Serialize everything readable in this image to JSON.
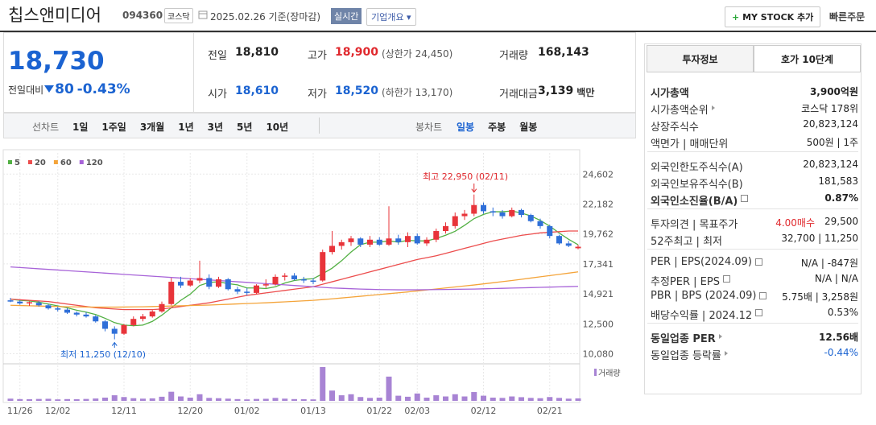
{
  "header": {
    "name": "칩스앤미디어",
    "code": "094360",
    "market": "코스닥",
    "date": "2025.02.26 기준(장마감)",
    "realtime": "실시간",
    "company": "기업개요",
    "my_stock": "MY STOCK 추가",
    "quick_order": "빠른주문"
  },
  "price": {
    "current": "18,730",
    "change_label": "전일대비",
    "change": "80",
    "change_rate": "-0.43%"
  },
  "summary": [
    {
      "label": "전일",
      "value": "18,810",
      "color": "#222"
    },
    {
      "label": "고가",
      "value": "18,900",
      "color": "#e0282d",
      "extra": "(상한가 24,450)"
    },
    {
      "label": "거래량",
      "value": "168,143",
      "color": "#222"
    },
    {
      "label": "시가",
      "value": "18,610",
      "color": "#1b63d1"
    },
    {
      "label": "저가",
      "value": "18,520",
      "color": "#1b63d1",
      "extra": "(하한가 13,170)"
    },
    {
      "label": "거래대금",
      "value": "3,139",
      "color": "#222",
      "unit": "백만"
    }
  ],
  "toolbar": {
    "line_label": "선차트",
    "line_periods": [
      "1일",
      "1주일",
      "3개월",
      "1년",
      "3년",
      "5년",
      "10년"
    ],
    "candle_label": "봉차트",
    "candle_periods": [
      "일봉",
      "주봉",
      "월봉"
    ],
    "active": "일봉"
  },
  "chart_data": {
    "type": "candlestick",
    "categories": [
      null,
      "11/26",
      null,
      null,
      null,
      "12/02",
      null,
      null,
      null,
      null,
      null,
      null,
      "12/11",
      null,
      null,
      null,
      null,
      null,
      null,
      "12/20",
      null,
      null,
      null,
      null,
      null,
      "01/02",
      null,
      null,
      null,
      null,
      null,
      null,
      "01/13",
      null,
      null,
      null,
      null,
      null,
      null,
      "01/22",
      null,
      null,
      null,
      "02/03",
      null,
      null,
      null,
      null,
      null,
      null,
      "02/12",
      null,
      null,
      null,
      null,
      null,
      null,
      "02/21",
      null,
      null,
      null
    ],
    "open": [
      14400,
      14300,
      14150,
      14200,
      14000,
      13750,
      13650,
      13400,
      13250,
      13100,
      12700,
      12100,
      11700,
      12400,
      12900,
      13100,
      13500,
      14100,
      15900,
      15600,
      16000,
      16200,
      15500,
      16100,
      15300,
      15100,
      15000,
      15600,
      15700,
      16300,
      16400,
      16100,
      16000,
      16000,
      18300,
      18800,
      19100,
      19400,
      18900,
      19300,
      18900,
      19400,
      19100,
      19600,
      19000,
      19300,
      20000,
      20400,
      21200,
      21400,
      22100,
      21600,
      21500,
      21200,
      21700,
      21300,
      20800,
      20400,
      19600,
      19000,
      18610
    ],
    "high": [
      14600,
      14400,
      14300,
      14350,
      14100,
      13900,
      13800,
      13500,
      13450,
      13200,
      12800,
      12300,
      12500,
      13100,
      13300,
      13600,
      14300,
      16200,
      16300,
      16200,
      17600,
      16500,
      16300,
      16200,
      15500,
      15400,
      15700,
      16100,
      16500,
      16600,
      16600,
      16300,
      16200,
      18500,
      20000,
      19300,
      19600,
      19500,
      19600,
      19500,
      22000,
      19700,
      19900,
      19800,
      19500,
      20200,
      20700,
      21500,
      21700,
      22950,
      22300,
      21900,
      21700,
      21900,
      21800,
      21400,
      21000,
      20500,
      19700,
      19200,
      18900
    ],
    "low": [
      14250,
      14050,
      13950,
      13900,
      13650,
      13500,
      13300,
      13100,
      13000,
      12600,
      11900,
      11250,
      11600,
      12300,
      12700,
      13000,
      13400,
      14000,
      15400,
      15500,
      15800,
      15300,
      15400,
      15200,
      14900,
      14800,
      14900,
      15400,
      15600,
      16000,
      16000,
      15800,
      15700,
      15900,
      18100,
      18500,
      18800,
      18700,
      18700,
      18800,
      18800,
      18900,
      18700,
      18900,
      18800,
      19100,
      19800,
      20200,
      20900,
      21200,
      21400,
      21200,
      21000,
      21100,
      21100,
      20700,
      20200,
      19400,
      18900,
      18700,
      18520
    ],
    "close": [
      14300,
      14150,
      14250,
      14000,
      13750,
      13650,
      13400,
      13250,
      13100,
      12700,
      12100,
      11700,
      12400,
      12900,
      13100,
      13500,
      14100,
      15900,
      15600,
      16000,
      16200,
      15500,
      16100,
      15300,
      15100,
      15000,
      15600,
      15700,
      16300,
      16400,
      16100,
      16000,
      15900,
      18300,
      18800,
      19100,
      19400,
      18900,
      19300,
      18900,
      19400,
      19100,
      19600,
      19000,
      19300,
      20000,
      20400,
      21200,
      21400,
      22100,
      21600,
      21500,
      21200,
      21700,
      21300,
      20800,
      20400,
      19600,
      19000,
      18810,
      18730
    ],
    "volume": [
      150000,
      120000,
      110000,
      130000,
      140000,
      100000,
      120000,
      110000,
      130000,
      160000,
      220000,
      380000,
      260000,
      180000,
      150000,
      170000,
      280000,
      620000,
      300000,
      220000,
      450000,
      200000,
      180000,
      150000,
      120000,
      100000,
      130000,
      140000,
      200000,
      150000,
      120000,
      110000,
      100000,
      2300000,
      700000,
      380000,
      450000,
      260000,
      200000,
      220000,
      1650000,
      350000,
      280000,
      500000,
      220000,
      380000,
      300000,
      450000,
      300000,
      600000,
      350000,
      220000,
      200000,
      300000,
      250000,
      200000,
      180000,
      260000,
      200000,
      150000,
      168143
    ],
    "up_color": "#e8343a",
    "down_color": "#2f6fd8",
    "volume_color": "#a884d4",
    "volume_label": "거래량",
    "series": [
      {
        "name": "5",
        "color": "#52b043",
        "values": [
          14500,
          14400,
          14350,
          14250,
          14100,
          13950,
          13800,
          13600,
          13450,
          13250,
          12950,
          12600,
          12400,
          12350,
          12400,
          12700,
          13200,
          13800,
          14400,
          14900,
          15600,
          15850,
          15900,
          15750,
          15650,
          15400,
          15400,
          15350,
          15500,
          15800,
          16000,
          16100,
          16150,
          16550,
          17000,
          17600,
          18300,
          18900,
          19100,
          19100,
          19200,
          19100,
          19250,
          19200,
          19200,
          19400,
          19660,
          19980,
          20460,
          21000,
          21340,
          21560,
          21560,
          21620,
          21460,
          21220,
          20860,
          20400,
          19840,
          19330,
          18890
        ]
      },
      {
        "name": "20",
        "color": "#ec4d4d",
        "values": [
          14500,
          14450,
          14400,
          14350,
          14300,
          14200,
          14100,
          14000,
          13900,
          13800,
          13750,
          13700,
          13650,
          13650,
          13650,
          13650,
          13700,
          13800,
          13900,
          14000,
          14100,
          14200,
          14350,
          14500,
          14650,
          14800,
          14900,
          15000,
          15100,
          15200,
          15300,
          15400,
          15500,
          15700,
          15900,
          16100,
          16300,
          16500,
          16700,
          16900,
          17100,
          17300,
          17500,
          17700,
          17850,
          18000,
          18200,
          18400,
          18600,
          18800,
          19000,
          19200,
          19350,
          19500,
          19650,
          19750,
          19850,
          19900,
          19950,
          20000,
          20000
        ]
      },
      {
        "name": "60",
        "color": "#f4a43a",
        "values": [
          14000,
          13980,
          13960,
          13940,
          13920,
          13900,
          13880,
          13870,
          13860,
          13850,
          13850,
          13850,
          13860,
          13870,
          13880,
          13900,
          13920,
          13940,
          13960,
          13980,
          14000,
          14020,
          14050,
          14080,
          14110,
          14140,
          14170,
          14200,
          14240,
          14280,
          14320,
          14360,
          14400,
          14460,
          14520,
          14590,
          14660,
          14730,
          14800,
          14870,
          14940,
          15010,
          15080,
          15160,
          15240,
          15320,
          15400,
          15480,
          15560,
          15640,
          15730,
          15820,
          15910,
          16000,
          16100,
          16200,
          16300,
          16400,
          16500,
          16600,
          16700
        ]
      },
      {
        "name": "120",
        "color": "#a763d8",
        "values": [
          17100,
          17050,
          17000,
          16950,
          16900,
          16850,
          16800,
          16750,
          16700,
          16650,
          16600,
          16550,
          16500,
          16450,
          16400,
          16350,
          16300,
          16250,
          16200,
          16150,
          16100,
          16050,
          16000,
          15950,
          15900,
          15850,
          15800,
          15750,
          15700,
          15650,
          15600,
          15550,
          15500,
          15450,
          15400,
          15370,
          15340,
          15310,
          15290,
          15270,
          15260,
          15250,
          15250,
          15250,
          15260,
          15270,
          15280,
          15290,
          15300,
          15310,
          15330,
          15350,
          15370,
          15390,
          15410,
          15430,
          15450,
          15470,
          15490,
          15510,
          15530
        ]
      }
    ],
    "ylim": [
      9400,
      25400
    ],
    "yticks": [
      {
        "value": 24602,
        "label": "24,602"
      },
      {
        "value": 22182,
        "label": "22,182"
      },
      {
        "value": 19762,
        "label": "19,762"
      },
      {
        "value": 17341,
        "label": "17,341"
      },
      {
        "value": 14921,
        "label": "14,921"
      },
      {
        "value": 12500,
        "label": "12,500"
      },
      {
        "value": 10080,
        "label": "10,080"
      }
    ],
    "grid": true,
    "annotations": [
      {
        "text": "최고 22,950 (02/11)",
        "color": "#e0282d"
      },
      {
        "text": "최저 11,250 (12/10)",
        "color": "#1b63d1"
      }
    ]
  },
  "side": {
    "tabs": [
      "투자정보",
      "호가 10단계"
    ],
    "active_tab": "투자정보",
    "sections": [
      [
        {
          "label": "시가총액",
          "value": "3,900억원",
          "bold": true
        },
        {
          "label": "시가총액순위",
          "value": "코스닥 178위",
          "icon": "arrow"
        },
        {
          "label": "상장주식수",
          "value": "20,823,124"
        },
        {
          "label": "액면가 | 매매단위",
          "value": "500원 | 1주"
        }
      ],
      [
        {
          "label": "외국인한도주식수(A)",
          "value": "20,823,124"
        },
        {
          "label": "외국인보유주식수(B)",
          "value": "181,583"
        },
        {
          "label": "외국인소진율(B/A)",
          "value": "0.87%",
          "bold": true,
          "icon": "info"
        }
      ],
      [
        {
          "label": "투자의견 | 목표주가",
          "value": "29,500",
          "value2": "4.00매수",
          "value2_color": "#e0282d"
        },
        {
          "label": "52주최고 | 최저",
          "value": "32,700 | 11,250"
        }
      ],
      [
        {
          "label": "PER | EPS(2024.09)",
          "value": "N/A | -847원",
          "icon": "info"
        },
        {
          "label": "추정PER | EPS",
          "value": "N/A | N/A",
          "icon": "info"
        },
        {
          "label": "PBR | BPS (2024.09)",
          "value": "5.75배 | 3,258원",
          "icon": "info"
        },
        {
          "label": "배당수익률 | 2024.12",
          "value": "0.53%",
          "icon": "info"
        }
      ],
      [
        {
          "label": "동일업종 PER",
          "value": "12.56배",
          "bold": true,
          "icon": "arrow"
        },
        {
          "label": "동일업종 등락률",
          "value": "-0.44%",
          "color": "#1b63d1",
          "icon": "arrow"
        }
      ]
    ]
  }
}
